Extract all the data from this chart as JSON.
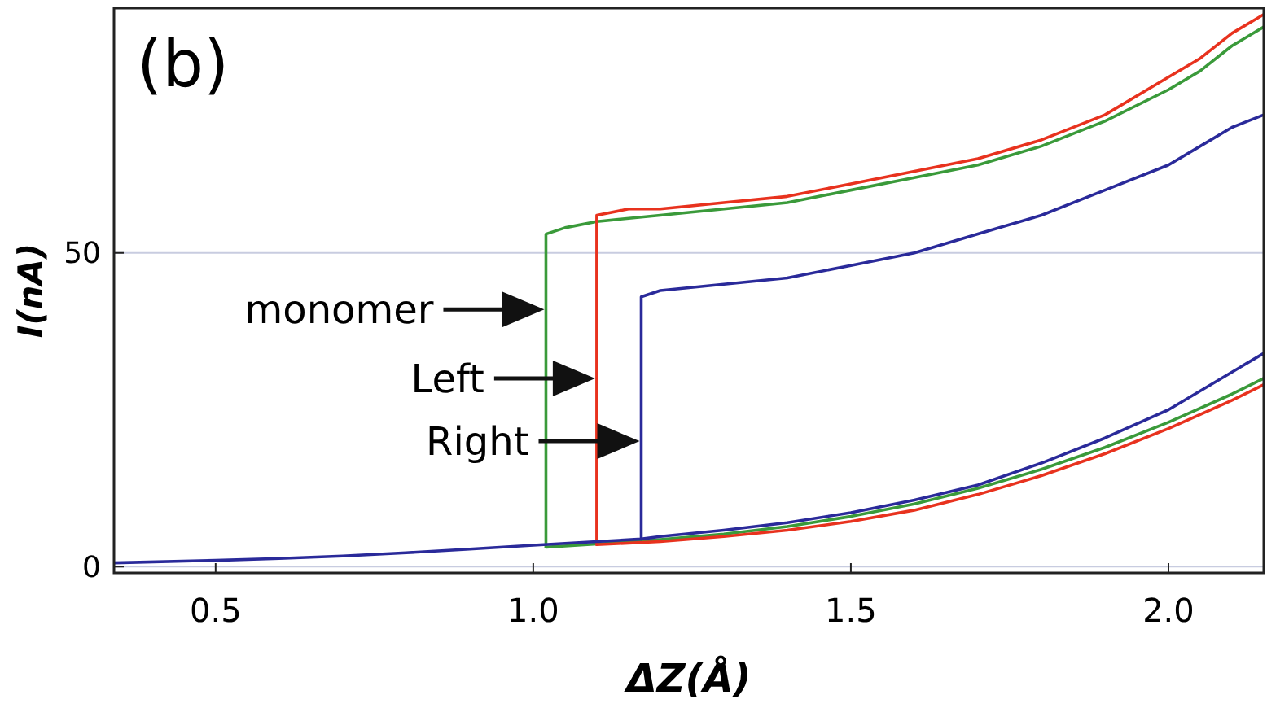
{
  "chart_data": {
    "type": "line",
    "title": "(b)",
    "xlabel": "ΔZ(Å)",
    "ylabel": "I(nA)",
    "xlim": [
      0.34,
      2.15
    ],
    "ylim": [
      -1,
      89
    ],
    "xticks": [
      {
        "value": 0.5,
        "label": "0.5"
      },
      {
        "value": 1,
        "label": "1.0"
      },
      {
        "value": 1.5,
        "label": "1.5"
      },
      {
        "value": 2,
        "label": "2.0"
      }
    ],
    "yticks": [
      0,
      50
    ],
    "grid": "y",
    "line_style": "solid",
    "marker": "none",
    "series": [
      {
        "color": "#3a9a3a",
        "x": [
          1.02,
          1.02,
          1.05,
          1.1,
          1.2,
          1.3,
          1.4,
          1.5,
          1.6,
          1.7,
          1.8,
          1.9,
          2.0,
          2.05,
          2.1,
          2.15
        ],
        "values": [
          3.1,
          53,
          54,
          55,
          56,
          57,
          58,
          60,
          62,
          64,
          67,
          71,
          76,
          79,
          83,
          86
        ]
      },
      {
        "color": "#3a9a3a",
        "x": [
          1.02,
          1.1,
          1.2,
          1.3,
          1.4,
          1.5,
          1.6,
          1.7,
          1.8,
          1.9,
          2.0,
          2.1,
          2.15
        ],
        "values": [
          3.1,
          3.6,
          4.3,
          5.2,
          6.4,
          8,
          10,
          12.5,
          15.5,
          19,
          23,
          27.5,
          30
        ]
      },
      {
        "color": "#e8321e",
        "x": [
          1.1,
          1.1,
          1.15,
          1.2,
          1.3,
          1.4,
          1.5,
          1.6,
          1.7,
          1.8,
          1.9,
          2.0,
          2.05,
          2.1,
          2.15
        ],
        "values": [
          3.5,
          56,
          57,
          57,
          58,
          59,
          61,
          63,
          65,
          68,
          72,
          78,
          81,
          85,
          88
        ]
      },
      {
        "color": "#e8321e",
        "x": [
          1.1,
          1.2,
          1.3,
          1.4,
          1.5,
          1.6,
          1.7,
          1.8,
          1.9,
          2.0,
          2.1,
          2.15
        ],
        "values": [
          3.5,
          4,
          4.8,
          5.8,
          7.2,
          9,
          11.5,
          14.5,
          18,
          22,
          26.5,
          29
        ]
      },
      {
        "color": "#2a2a9a",
        "x": [
          0.34,
          0.5,
          0.6,
          0.7,
          0.8,
          0.9,
          1.0,
          1.1,
          1.17,
          1.17,
          1.2,
          1.3,
          1.4,
          1.5,
          1.6,
          1.7,
          1.8,
          1.9,
          2.0,
          2.05,
          2.1,
          2.15
        ],
        "values": [
          0.6,
          1,
          1.3,
          1.7,
          2.2,
          2.8,
          3.4,
          4,
          4.4,
          43,
          44,
          45,
          46,
          48,
          50,
          53,
          56,
          60,
          64,
          67,
          70,
          72
        ]
      },
      {
        "color": "#2a2a9a",
        "x": [
          1.17,
          1.2,
          1.3,
          1.4,
          1.5,
          1.6,
          1.7,
          1.8,
          1.9,
          2.0,
          2.1,
          2.15
        ],
        "values": [
          4.4,
          4.8,
          5.8,
          7,
          8.6,
          10.6,
          13,
          16.5,
          20.5,
          25,
          31,
          34
        ]
      }
    ],
    "annotations": [
      {
        "text": "monomer",
        "x": 1.02,
        "y": 41
      },
      {
        "text": "Left",
        "x": 1.1,
        "y": 30
      },
      {
        "text": "Right",
        "x": 1.17,
        "y": 20
      }
    ]
  }
}
